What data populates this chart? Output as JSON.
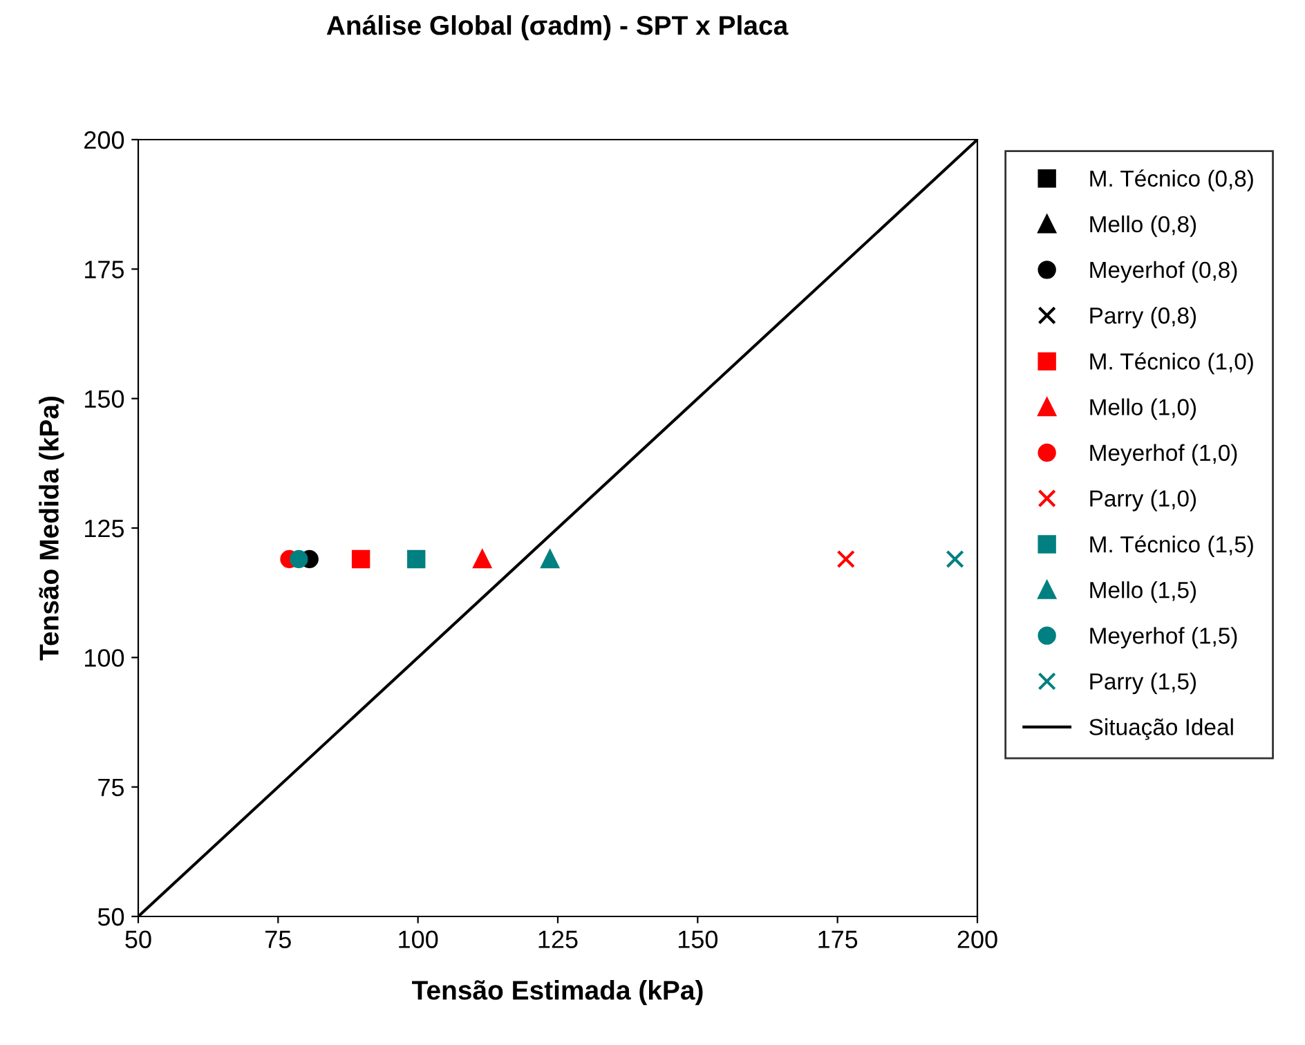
{
  "chart_data": {
    "type": "scatter",
    "title": "Análise Global (σadm) - SPT x Placa",
    "xlabel": "Tensão Estimada (kPa)",
    "ylabel": "Tensão Medida (kPa)",
    "xlim": [
      50,
      200
    ],
    "ylim": [
      50,
      200
    ],
    "xticks": [
      50,
      75,
      100,
      125,
      150,
      175,
      200
    ],
    "yticks": [
      50,
      75,
      100,
      125,
      150,
      175,
      200
    ],
    "grid": false,
    "legend": "right",
    "series": [
      {
        "name": "M. Técnico (0,8)",
        "color": "#000000",
        "marker": "square",
        "x": [
          null
        ],
        "values": [
          null
        ]
      },
      {
        "name": "Mello (0,8)",
        "color": "#000000",
        "marker": "triangle",
        "x": [
          null
        ],
        "values": [
          null
        ]
      },
      {
        "name": "Meyerhof (0,8)",
        "color": "#000000",
        "marker": "circle",
        "x": [
          80.6
        ],
        "values": [
          119
        ]
      },
      {
        "name": "Parry (0,8)",
        "color": "#000000",
        "marker": "cross",
        "x": [
          null
        ],
        "values": [
          null
        ]
      },
      {
        "name": "M. Técnico (1,0)",
        "color": "#ff0000",
        "marker": "square",
        "x": [
          89.8
        ],
        "values": [
          119
        ]
      },
      {
        "name": "Mello (1,0)",
        "color": "#ff0000",
        "marker": "triangle",
        "x": [
          111.5
        ],
        "values": [
          119
        ]
      },
      {
        "name": "Meyerhof (1,0)",
        "color": "#ff0000",
        "marker": "circle",
        "x": [
          77.0
        ],
        "values": [
          119
        ]
      },
      {
        "name": "Parry (1,0)",
        "color": "#ff0000",
        "marker": "cross",
        "x": [
          176.5
        ],
        "values": [
          119
        ]
      },
      {
        "name": "M. Técnico (1,5)",
        "color": "#008080",
        "marker": "square",
        "x": [
          99.7
        ],
        "values": [
          119
        ]
      },
      {
        "name": "Mello (1,5)",
        "color": "#008080",
        "marker": "triangle",
        "x": [
          123.6
        ],
        "values": [
          119
        ]
      },
      {
        "name": "Meyerhof (1,5)",
        "color": "#008080",
        "marker": "circle",
        "x": [
          78.7
        ],
        "values": [
          119
        ]
      },
      {
        "name": "Parry (1,5)",
        "color": "#008080",
        "marker": "cross",
        "x": [
          196
        ],
        "values": [
          119
        ]
      },
      {
        "name": "Situação Ideal",
        "type": "line",
        "color": "#000000",
        "marker": "none",
        "line_style": "solid",
        "x": [
          50,
          200
        ],
        "values": [
          50,
          200
        ]
      }
    ]
  }
}
